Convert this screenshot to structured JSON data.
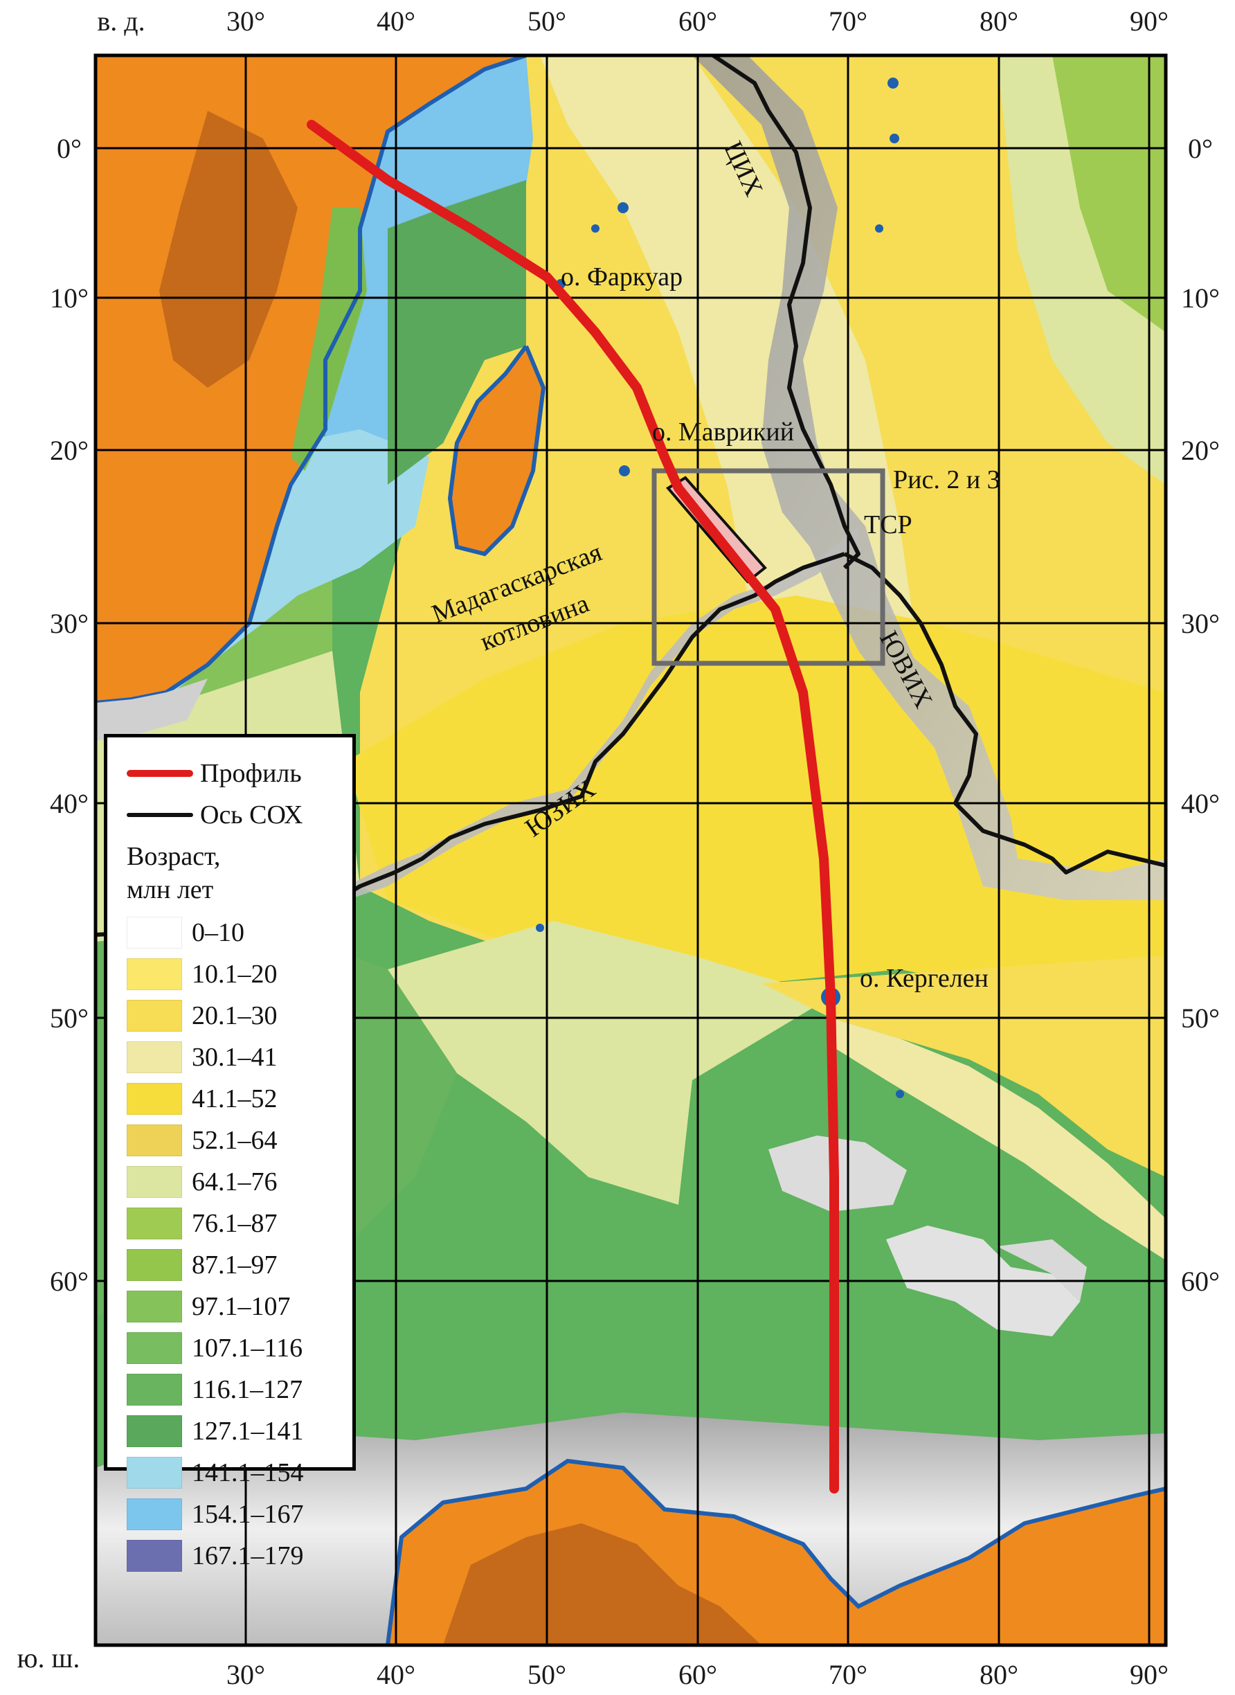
{
  "axes": {
    "top_left_label": "в. д.",
    "bottom_left_label": "ю. ш.",
    "longitudes": [
      "30°",
      "40°",
      "50°",
      "60°",
      "70°",
      "80°",
      "90°"
    ],
    "latitudes": [
      "0°",
      "10°",
      "20°",
      "30°",
      "40°",
      "50°",
      "60°"
    ]
  },
  "labels": {
    "cih": "ЦИХ",
    "farquhar": "о. Фаркуар",
    "mauritius": "о. Маврикий",
    "fig_ref": "Рис. 2 и 3",
    "tsr": "ТСР",
    "madagascar_basin_1": "Мадагаскарская",
    "madagascar_basin_2": "котловина",
    "yuvih": "ЮВИХ",
    "yuzih": "ЮЗИХ",
    "kerguelen": "о. Кергелен"
  },
  "legend": {
    "profile": "Профиль",
    "axis": "Ось СОХ",
    "age_title_1": "Возраст,",
    "age_title_2": "млн лет",
    "profile_color": "#e01b1b",
    "axis_color": "#111111",
    "ages": [
      {
        "label": "0–10",
        "color": "#ffffff"
      },
      {
        "label": "10.1–20",
        "color": "#fbe86a"
      },
      {
        "label": "20.1–30",
        "color": "#f6dd55"
      },
      {
        "label": "30.1–41",
        "color": "#efe9a5"
      },
      {
        "label": "41.1–52",
        "color": "#f7dd3c"
      },
      {
        "label": "52.1–64",
        "color": "#eed257"
      },
      {
        "label": "64.1–76",
        "color": "#dce6a0"
      },
      {
        "label": "76.1–87",
        "color": "#9fcb52"
      },
      {
        "label": "87.1–97",
        "color": "#93c64b"
      },
      {
        "label": "97.1–107",
        "color": "#86c25a"
      },
      {
        "label": "107.1–116",
        "color": "#78bd5f"
      },
      {
        "label": "116.1–127",
        "color": "#69b45e"
      },
      {
        "label": "127.1–141",
        "color": "#5aa85c"
      },
      {
        "label": "141.1–154",
        "color": "#9fd9ea"
      },
      {
        "label": "154.1–167",
        "color": "#7cc5ec"
      },
      {
        "label": "167.1–179",
        "color": "#6b6fb0"
      }
    ]
  },
  "colors": {
    "ocean_green": "#5fb25e",
    "land_orange": "#ef8a1f",
    "land_brown": "#c46a1a",
    "coast_blue": "#1f5fb0",
    "ice_gray": "#c8c8c8",
    "grid": "#000000"
  }
}
